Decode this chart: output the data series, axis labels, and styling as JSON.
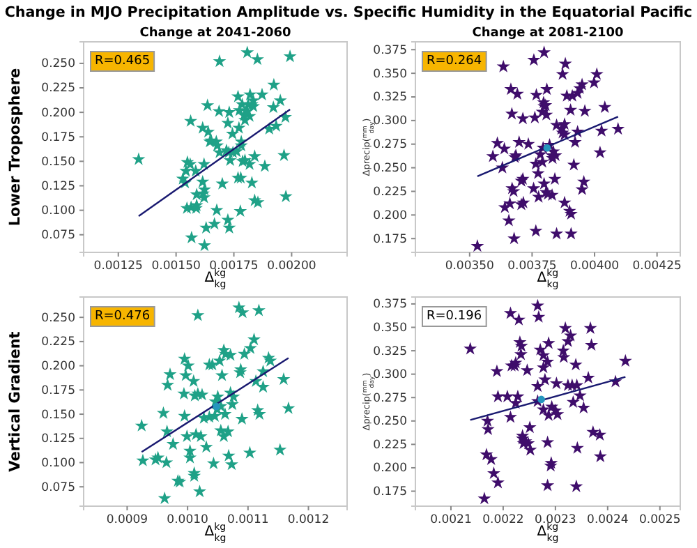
{
  "chart_data": [
    {
      "type": "scatter",
      "title": "Change at 2041-2060",
      "xlabel": "Δ$^{kg}$$_{kg}$",
      "annotations": [
        "R=0.465",
        "Lower Troposphere",
        "Change in MJO Precipitation Amplitude vs. Specific Humidity in the Equatorial Pacific"
      ],
      "xlim": [
        0.0011,
        0.00224
      ],
      "ylim": [
        0.057,
        0.272
      ],
      "xticks": [
        0.00125,
        {
          "value": 0.0015,
          "label": "0.00150"
        },
        0.00175,
        {
          "value": 0.002,
          "label": "0.00200"
        }
      ],
      "yticks": [
        0.075,
        {
          "value": 0.1,
          "label": "0.100"
        },
        0.125,
        {
          "value": 0.15,
          "label": "0.150"
        },
        0.175,
        {
          "value": 0.2,
          "label": "0.200"
        },
        0.225,
        {
          "value": 0.25,
          "label": "0.250"
        }
      ],
      "series": [
        {
          "type": "scatter",
          "marker": "star",
          "color": "#1fa187",
          "x": [
            0.001338,
            0.001808,
            0.001688,
            0.001852,
            0.001993,
            0.001923,
            0.001636,
            0.001686,
            0.00173,
            0.001774,
            0.001768,
            0.00182,
            0.001834,
            0.001872,
            0.001834,
            0.001786,
            0.001812,
            0.001828,
            0.001798,
            0.001818,
            0.001794,
            0.001808,
            0.001951,
            0.001921,
            0.001973,
            0.001903,
            0.001933,
            0.001724,
            0.001563,
            0.001615,
            0.001639,
            0.001652,
            0.001674,
            0.001646,
            0.001678,
            0.001744,
            0.001772,
            0.001782,
            0.001728,
            0.001746,
            0.001762,
            0.001718,
            0.001688,
            0.001782,
            0.001788,
            0.001798,
            0.001734,
            0.001818,
            0.00184,
            0.001884,
            0.001967,
            0.001549,
            0.001561,
            0.001543,
            0.001529,
            0.001539,
            0.001585,
            0.001621,
            0.001615,
            0.001623,
            0.001617,
            0.001621,
            0.001589,
            0.0017,
            0.001768,
            0.00178,
            0.001828,
            0.001975,
            0.001547,
            0.001565,
            0.001589,
            0.001587,
            0.001676,
            0.001778,
            0.00184,
            0.001854,
            0.001666,
            0.001724,
            0.00173,
            0.00163,
            0.001567,
            0.001623
          ],
          "values": [
            0.152,
            0.261,
            0.252,
            0.254,
            0.257,
            0.228,
            0.207,
            0.201,
            0.2,
            0.202,
            0.216,
            0.218,
            0.212,
            0.218,
            0.206,
            0.208,
            0.208,
            0.208,
            0.192,
            0.196,
            0.197,
            0.201,
            0.212,
            0.205,
            0.195,
            0.183,
            0.186,
            0.189,
            0.191,
            0.184,
            0.18,
            0.171,
            0.17,
            0.17,
            0.166,
            0.178,
            0.184,
            0.17,
            0.159,
            0.159,
            0.16,
            0.161,
            0.159,
            0.166,
            0.15,
            0.151,
            0.151,
            0.147,
            0.155,
            0.145,
            0.156,
            0.149,
            0.147,
            0.14,
            0.132,
            0.128,
            0.14,
            0.147,
            0.129,
            0.121,
            0.117,
            0.113,
            0.116,
            0.127,
            0.133,
            0.133,
            0.128,
            0.114,
            0.102,
            0.103,
            0.105,
            0.102,
            0.1,
            0.099,
            0.11,
            0.108,
            0.086,
            0.09,
            0.082,
            0.082,
            0.072,
            0.064
          ]
        },
        {
          "type": "line",
          "color": "#191970",
          "x": [
            0.001338,
            0.001993
          ],
          "values": [
            0.094,
            0.203
          ]
        }
      ]
    },
    {
      "type": "scatter",
      "title": "Change at 2081-2100",
      "xlabel": "Δ$^{kg}$$_{kg}$",
      "ylabel": "Δprecip($^{mm}$$_{day}$)",
      "annotations": [
        "R=0.264"
      ],
      "xlim": [
        0.003283,
        0.004343
      ],
      "ylim": [
        0.1604,
        0.3833
      ],
      "xticks": [
        {
          "value": 0.0035,
          "label": "0.00350"
        },
        0.00375,
        {
          "value": 0.004,
          "label": "0.00400"
        },
        0.00425
      ],
      "yticks": [
        0.175,
        {
          "value": 0.2,
          "label": "0.200"
        },
        0.225,
        {
          "value": 0.25,
          "label": "0.250"
        },
        0.275,
        {
          "value": 0.3,
          "label": "0.300"
        },
        0.325,
        {
          "value": 0.35,
          "label": "0.350"
        },
        0.375
      ],
      "series": [
        {
          "type": "scatter",
          "marker": "star",
          "color": "#3f0d6b",
          "x": [
            0.003531,
            0.003635,
            0.003665,
            0.003691,
            0.003757,
            0.003798,
            0.003883,
            0.003872,
            0.004009,
            0.003998,
            0.00395,
            0.003941,
            0.003932,
            0.003911,
            0.003889,
            0.003904,
            0.003961,
            0.004041,
            0.003809,
            0.003767,
            0.003796,
            0.003798,
            0.003791,
            0.003807,
            0.003804,
            0.003669,
            0.003713,
            0.003761,
            0.003848,
            0.00388,
            0.003867,
            0.003872,
            0.00388,
            0.003932,
            0.004028,
            0.004094,
            0.003922,
            0.004022,
            0.003611,
            0.003639,
            0.003593,
            0.003685,
            0.003735,
            0.003698,
            0.003681,
            0.003631,
            0.003783,
            0.003794,
            0.00382,
            0.00383,
            0.003844,
            0.003832,
            0.003835,
            0.003791,
            0.003765,
            0.003774,
            0.003798,
            0.003806,
            0.003813,
            0.003841,
            0.003713,
            0.003707,
            0.00367,
            0.003676,
            0.003756,
            0.00383,
            0.003776,
            0.003917,
            0.003957,
            0.00395,
            0.00388,
            0.0039,
            0.003906,
            0.003707,
            0.003715,
            0.003641,
            0.003661,
            0.003657,
            0.003678,
            0.003765,
            0.003848,
            0.003906
          ],
          "values": [
            0.167,
            0.357,
            0.333,
            0.328,
            0.364,
            0.372,
            0.36,
            0.349,
            0.349,
            0.34,
            0.338,
            0.334,
            0.329,
            0.326,
            0.326,
            0.311,
            0.31,
            0.314,
            0.333,
            0.327,
            0.319,
            0.315,
            0.309,
            0.306,
            0.316,
            0.307,
            0.302,
            0.303,
            0.295,
            0.296,
            0.291,
            0.287,
            0.285,
            0.288,
            0.289,
            0.291,
            0.277,
            0.266,
            0.276,
            0.27,
            0.262,
            0.263,
            0.275,
            0.277,
            0.261,
            0.25,
            0.264,
            0.271,
            0.274,
            0.263,
            0.263,
            0.26,
            0.267,
            0.256,
            0.254,
            0.244,
            0.233,
            0.224,
            0.222,
            0.238,
            0.238,
            0.236,
            0.228,
            0.225,
            0.228,
            0.221,
            0.219,
            0.253,
            0.235,
            0.227,
            0.213,
            0.204,
            0.201,
            0.211,
            0.213,
            0.208,
            0.212,
            0.194,
            0.175,
            0.183,
            0.18,
            0.18
          ]
        },
        {
          "type": "line",
          "color": "#191970",
          "x": [
            0.003531,
            0.004094
          ],
          "values": [
            0.241,
            0.304
          ]
        },
        {
          "type": "scatter",
          "marker": "circle",
          "color": "#2596be",
          "x": [
            0.00381
          ],
          "values": [
            0.271
          ]
        }
      ]
    },
    {
      "type": "scatter",
      "xlabel": "Δ$^{kg}$$_{kg}$",
      "annotations": [
        "R=0.476",
        "Vertical Gradient"
      ],
      "xlim": [
        0.000828,
        0.001264
      ],
      "ylim": [
        0.055,
        0.271
      ],
      "xticks": [
        0.0009,
        {
          "value": 0.001,
          "label": "0.0010"
        },
        0.0011,
        0.0012
      ],
      "yticks": [
        0.075,
        {
          "value": 0.1,
          "label": "0.100"
        },
        0.125,
        {
          "value": 0.15,
          "label": "0.150"
        },
        0.175,
        {
          "value": 0.2,
          "label": "0.200"
        },
        0.225,
        {
          "value": 0.25,
          "label": "0.250"
        }
      ],
      "series": [
        {
          "type": "scatter",
          "marker": "star",
          "color": "#1fa187",
          "x": [
            0.000924,
            0.000926,
            0.000947,
            0.000951,
            0.00096,
            0.000962,
            0.000966,
            0.000965,
            0.000967,
            0.000971,
            0.000976,
            0.000984,
            0.000987,
            0.000994,
            0.000995,
            0.000995,
            0.000997,
            0.000999,
            0.001001,
            0.001004,
            0.001004,
            0.00101,
            0.001012,
            0.001011,
            0.001011,
            0.001014,
            0.001017,
            0.00102,
            0.001022,
            0.001024,
            0.001027,
            0.001031,
            0.001036,
            0.001017,
            0.001036,
            0.001041,
            0.001043,
            0.001045,
            0.001046,
            0.001049,
            0.00105,
            0.001053,
            0.001055,
            0.001055,
            0.001057,
            0.00106,
            0.00106,
            0.001062,
            0.001063,
            0.001067,
            0.001068,
            0.001071,
            0.001071,
            0.001073,
            0.001074,
            0.001076,
            0.001085,
            0.001087,
            0.001088,
            0.001091,
            0.00109,
            0.001094,
            0.001104,
            0.001103,
            0.00111,
            0.001113,
            0.001116,
            0.001118,
            0.001119,
            0.001125,
            0.001125,
            0.001134,
            0.001137,
            0.001159,
            0.001153,
            0.001167
          ],
          "values": [
            0.138,
            0.102,
            0.103,
            0.105,
            0.151,
            0.063,
            0.132,
            0.1,
            0.18,
            0.191,
            0.119,
            0.081,
            0.08,
            0.171,
            0.148,
            0.207,
            0.19,
            0.127,
            0.2,
            0.112,
            0.105,
            0.184,
            0.169,
            0.089,
            0.086,
            0.129,
            0.171,
            0.07,
            0.127,
            0.17,
            0.146,
            0.116,
            0.147,
            0.252,
            0.201,
            0.201,
            0.099,
            0.148,
            0.163,
            0.155,
            0.168,
            0.205,
            0.158,
            0.133,
            0.19,
            0.127,
            0.216,
            0.15,
            0.212,
            0.132,
            0.107,
            0.211,
            0.172,
            0.098,
            0.16,
            0.168,
            0.26,
            0.193,
            0.196,
            0.255,
            0.145,
            0.212,
            0.218,
            0.11,
            0.227,
            0.184,
            0.154,
            0.257,
            0.15,
            0.178,
            0.194,
            0.208,
            0.205,
            0.186,
            0.113,
            0.156
          ]
        },
        {
          "type": "line",
          "color": "#191970",
          "x": [
            0.000924,
            0.001167
          ],
          "values": [
            0.111,
            0.208
          ]
        },
        {
          "type": "scatter",
          "marker": "circle",
          "color": "#2596be",
          "x": [
            0.001048
          ],
          "values": [
            0.158
          ]
        }
      ]
    },
    {
      "type": "scatter",
      "xlabel": "Δ$^{kg}$$_{kg}$",
      "ylabel": "Δprecip($^{mm}$$_{day}$)",
      "annotations": [
        "R=0.196"
      ],
      "xlim": [
        0.002032,
        0.002539
      ],
      "ylim": [
        0.159,
        0.3824
      ],
      "xticks": [
        0.0021,
        0.0022,
        0.0023,
        0.0024,
        0.0025
      ],
      "yticks": [
        0.175,
        {
          "value": 0.2,
          "label": "0.200"
        },
        0.225,
        {
          "value": 0.25,
          "label": "0.250"
        },
        0.275,
        {
          "value": 0.3,
          "label": "0.300"
        },
        0.325,
        {
          "value": 0.35,
          "label": "0.350"
        },
        0.375
      ],
      "series": [
        {
          "type": "scatter",
          "marker": "star",
          "color": "#3f0d6b",
          "x": [
            0.002137,
            0.002164,
            0.002168,
            0.00217,
            0.002171,
            0.002177,
            0.002182,
            0.002188,
            0.00219,
            0.00219,
            0.002208,
            0.002214,
            0.002214,
            0.002216,
            0.002222,
            0.002224,
            0.002224,
            0.002228,
            0.00223,
            0.002232,
            0.002235,
            0.002234,
            0.002237,
            0.002237,
            0.002239,
            0.002243,
            0.002246,
            0.002248,
            0.002251,
            0.002252,
            0.002266,
            0.002268,
            0.002266,
            0.002266,
            0.002271,
            0.002277,
            0.002277,
            0.002277,
            0.00228,
            0.002285,
            0.002285,
            0.002285,
            0.002287,
            0.002287,
            0.002291,
            0.002292,
            0.002293,
            0.0023,
            0.002302,
            0.002304,
            0.002315,
            0.002316,
            0.002319,
            0.002324,
            0.002324,
            0.002329,
            0.002332,
            0.002334,
            0.002339,
            0.00234,
            0.002341,
            0.002342,
            0.002347,
            0.002354,
            0.002363,
            0.002367,
            0.002369,
            0.002372,
            0.002385,
            0.002386,
            0.002415,
            0.002434
          ],
          "values": [
            0.327,
            0.167,
            0.214,
            0.25,
            0.241,
            0.209,
            0.194,
            0.303,
            0.276,
            0.184,
            0.276,
            0.365,
            0.254,
            0.309,
            0.309,
            0.312,
            0.269,
            0.276,
            0.358,
            0.334,
            0.33,
            0.321,
            0.231,
            0.234,
            0.226,
            0.228,
            0.304,
            0.226,
            0.243,
            0.219,
            0.373,
            0.361,
            0.287,
            0.271,
            0.326,
            0.262,
            0.307,
            0.32,
            0.294,
            0.313,
            0.181,
            0.227,
            0.333,
            0.256,
            0.202,
            0.205,
            0.265,
            0.261,
            0.29,
            0.257,
            0.325,
            0.318,
            0.349,
            0.335,
            0.288,
            0.341,
            0.288,
            0.27,
            0.31,
            0.18,
            0.288,
            0.221,
            0.277,
            0.264,
            0.296,
            0.349,
            0.331,
            0.238,
            0.235,
            0.212,
            0.292,
            0.314
          ]
        },
        {
          "type": "line",
          "color": "#191970",
          "x": [
            0.002137,
            0.002434
          ],
          "values": [
            0.251,
            0.297
          ]
        },
        {
          "type": "scatter",
          "marker": "circle",
          "color": "#2596be",
          "x": [
            0.002273
          ],
          "values": [
            0.273
          ]
        }
      ]
    }
  ]
}
